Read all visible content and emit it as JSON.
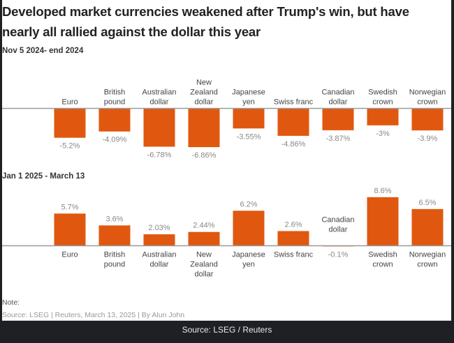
{
  "title": "Developed market currencies weakened after Trump's win, but have nearly all rallied against the dollar this year",
  "note": "Note:",
  "source_line": "Source: LSEG | Reuters, March 13, 2025 | By Alun John",
  "footer": "Source: LSEG / Reuters",
  "colors": {
    "bar": "#e0580f",
    "baseline": "#999999",
    "label": "#444444",
    "value": "#888888"
  },
  "chart_data": [
    {
      "type": "bar",
      "subtitle": "Nov 5 2024- end 2024",
      "categories": [
        [
          "Euro"
        ],
        [
          "British",
          "pound"
        ],
        [
          "Australian",
          "dollar"
        ],
        [
          "New",
          "Zealand",
          "dollar"
        ],
        [
          "Japanese",
          "yen"
        ],
        [
          "Swiss franc"
        ],
        [
          "Canadian",
          "dollar"
        ],
        [
          "Swedish",
          "crown"
        ],
        [
          "Norwegian",
          "crown"
        ]
      ],
      "values": [
        -5.2,
        -4.09,
        -6.78,
        -6.86,
        -3.55,
        -4.86,
        -3.87,
        -3,
        -3.9
      ],
      "value_labels": [
        "-5.2%",
        "-4.09%",
        "-6.78%",
        "-6.86%",
        "-3.55%",
        "-4.86%",
        "-3.87%",
        "-3%",
        "-3.9%"
      ],
      "unit": "%"
    },
    {
      "type": "bar",
      "subtitle": "Jan 1 2025 - March 13",
      "categories": [
        [
          "Euro"
        ],
        [
          "British",
          "pound"
        ],
        [
          "Australian",
          "dollar"
        ],
        [
          "New",
          "Zealand",
          "dollar"
        ],
        [
          "Japanese",
          "yen"
        ],
        [
          "Swiss franc"
        ],
        [
          "Canadian",
          "dollar"
        ],
        [
          "Swedish",
          "crown"
        ],
        [
          "Norwegian",
          "crown"
        ]
      ],
      "values": [
        5.7,
        3.6,
        2.03,
        2.44,
        6.2,
        2.6,
        -0.1,
        8.6,
        6.5
      ],
      "value_labels": [
        "5.7%",
        "3.6%",
        "2.03%",
        "2.44%",
        "6.2%",
        "2.6%",
        "-0.1%",
        "8.6%",
        "6.5%"
      ],
      "unit": "%"
    }
  ]
}
